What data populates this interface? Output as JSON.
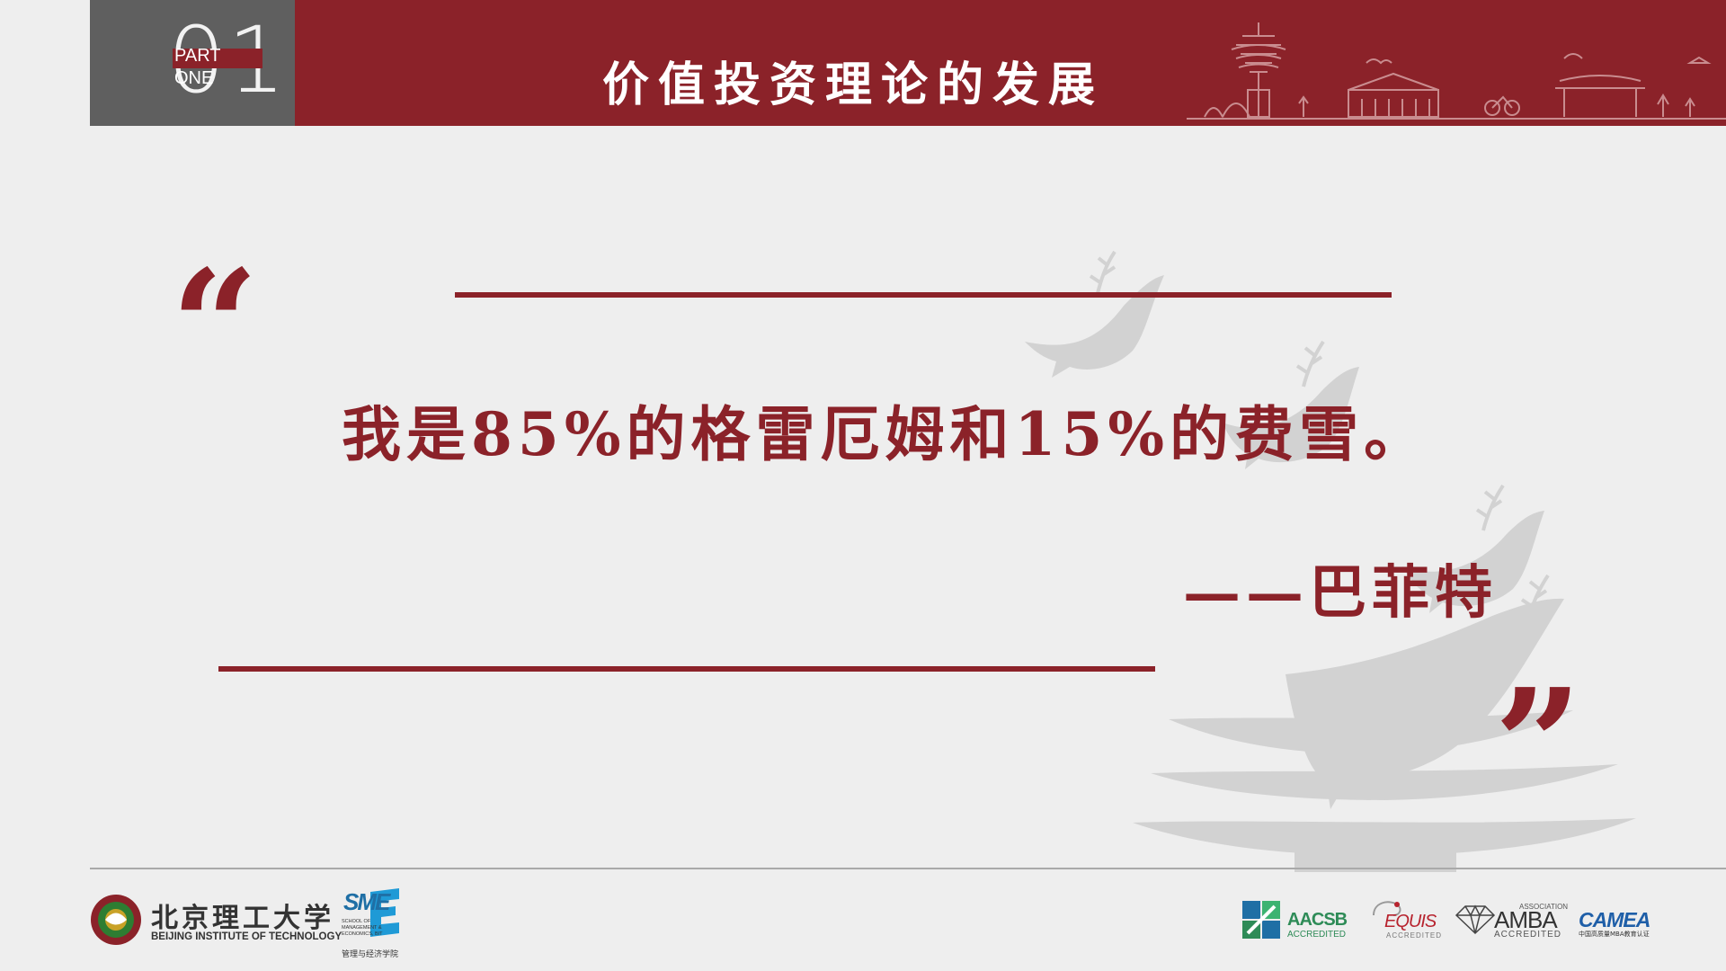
{
  "header": {
    "part_number": "01",
    "part_label_line1": "PART",
    "part_label_line2": "ONE",
    "title": "价值投资理论的发展"
  },
  "quote": {
    "text": "我是85%的格雷厄姆和15%的费雪。",
    "attribution": "——巴菲特",
    "open_mark": "“",
    "close_mark": "”"
  },
  "footer": {
    "university_cn": "北京理工大学",
    "university_en": "BEIJING INSTITUTE OF TECHNOLOGY",
    "school_mark": "SME",
    "school_en": "SCHOOL OF MANAGEMENT & ECONOMICS, BIT",
    "school_cn": "管理与经济学院",
    "accreditations": {
      "aacsb": {
        "name": "AACSB",
        "sub": "ACCREDITED"
      },
      "equis": {
        "name": "EQUIS",
        "sub": "ACCREDITED"
      },
      "amba": {
        "name": "AMBA",
        "assoc": "ASSOCIATION",
        "sub": "ACCREDITED"
      },
      "camea": {
        "name": "CAMEA",
        "sub": "中国高质量MBA教育认证"
      }
    }
  },
  "colors": {
    "brand_red": "#8b2229",
    "header_gray": "#5f5f5f",
    "background": "#eeeeee",
    "watermark_gray": "#cfcfcf"
  },
  "icons": [
    "bit-seal-icon",
    "sme-logo-icon",
    "aacsb-icon",
    "equis-icon",
    "amba-diamond-icon",
    "dove-watermark-icon",
    "skyline-illustration-icon"
  ]
}
